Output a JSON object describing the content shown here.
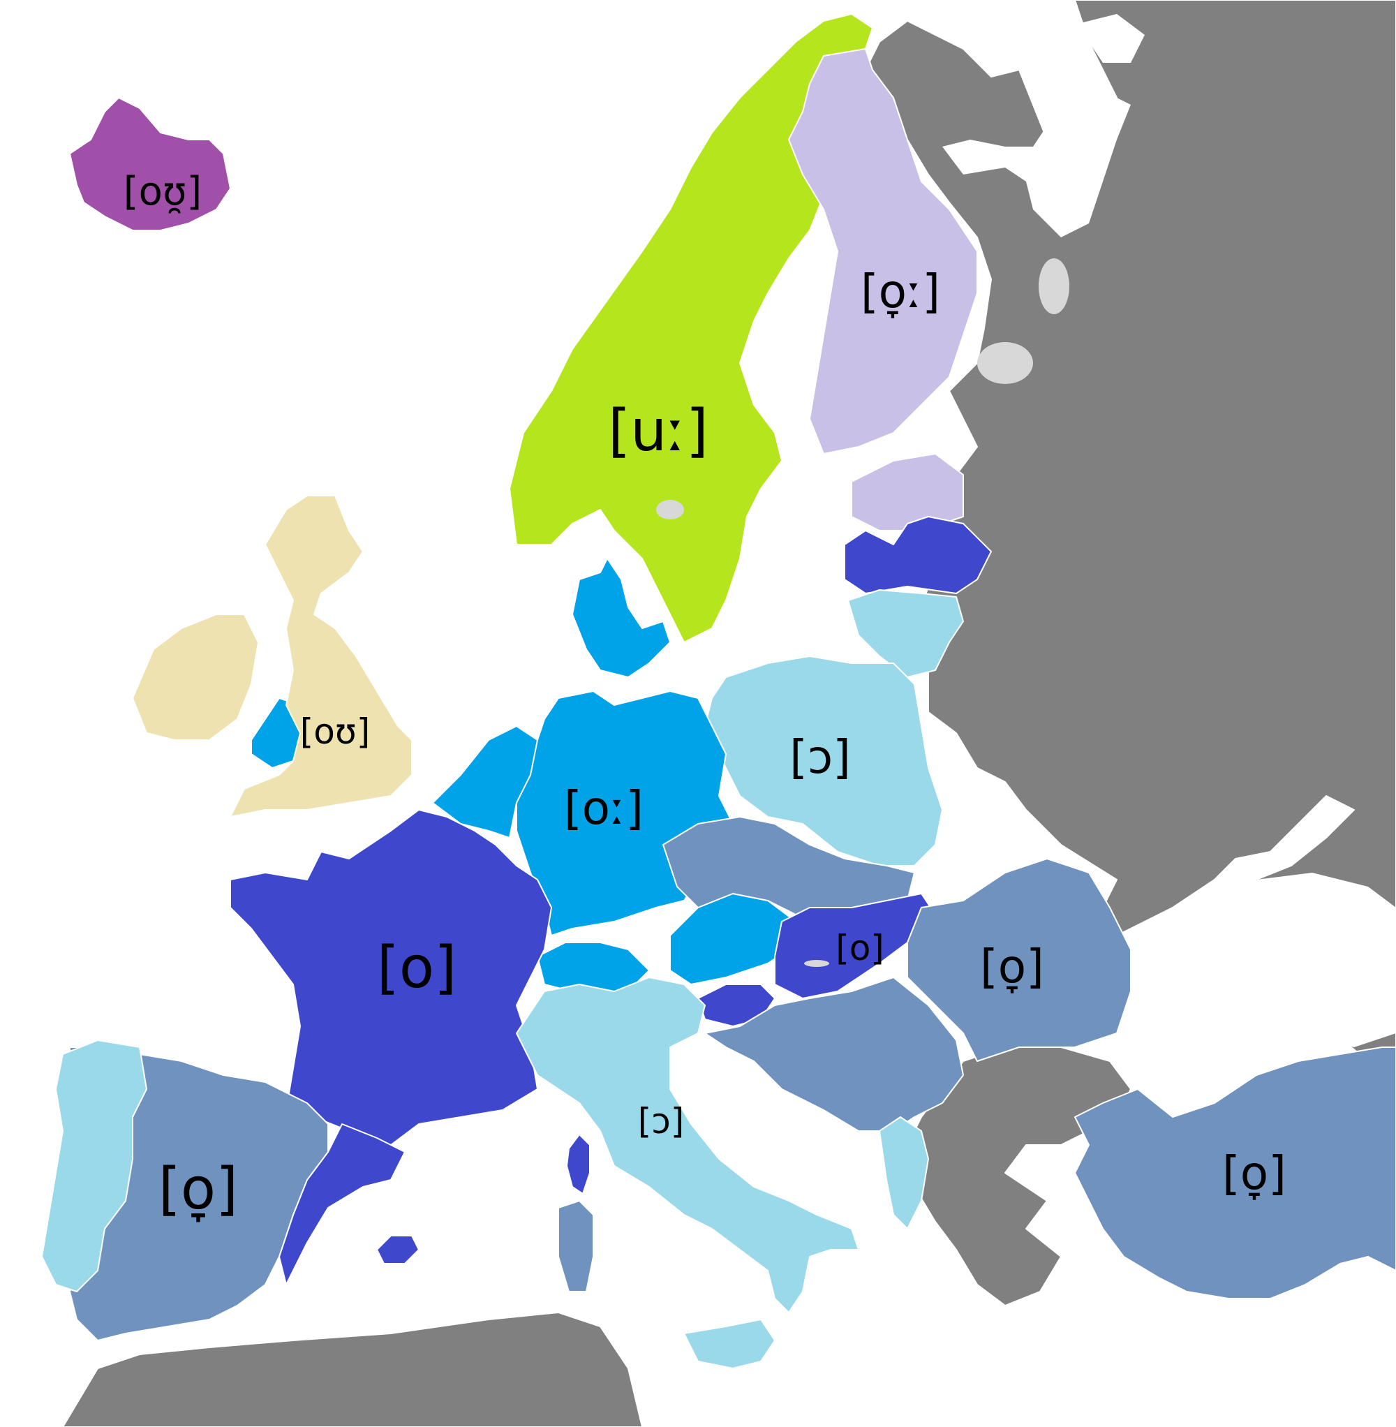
{
  "colors": {
    "background": "#ffffff",
    "other_countries": "#808080",
    "lakes": "#d8d8d8",
    "iceland": "#a050a8",
    "scandinavia": "#b5e61d",
    "finland_estonia": "#c8c0e6",
    "britain_ireland": "#eee3b0",
    "germanic": "#00a2e8",
    "close_mid": "#3f48cc",
    "open_mid": "#99d9ea",
    "lowered": "#7092be"
  },
  "labels": {
    "iceland": "[oʊ̯]",
    "finland": "[o̞ː]",
    "scandinavia": "[uː]",
    "britain": "[oʊ]",
    "germany": "[oː]",
    "poland": "[ɔ]",
    "france": "[o]",
    "hungary": "[o]",
    "romania": "[o̞]",
    "italy": "[ɔ]",
    "spain": "[o̞]",
    "turkey": "[o̞]"
  }
}
